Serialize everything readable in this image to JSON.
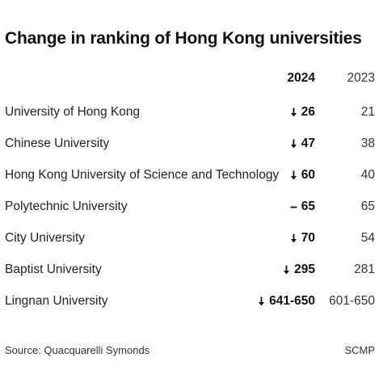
{
  "chart_data": {
    "type": "table",
    "title": "Change in ranking of Hong Kong universities",
    "columns": [
      "2024",
      "2023"
    ],
    "rows": [
      {
        "name": "University of Hong Kong",
        "rank_2024": "26",
        "rank_2023": "21",
        "change": "down"
      },
      {
        "name": "Chinese University",
        "rank_2024": "47",
        "rank_2023": "38",
        "change": "down"
      },
      {
        "name": "Hong Kong University of Science and Technology",
        "rank_2024": "60",
        "rank_2023": "40",
        "change": "down"
      },
      {
        "name": "Polytechnic University",
        "rank_2024": "65",
        "rank_2023": "65",
        "change": "same"
      },
      {
        "name": "City University",
        "rank_2024": "70",
        "rank_2023": "54",
        "change": "down"
      },
      {
        "name": "Baptist University",
        "rank_2024": "295",
        "rank_2023": "281",
        "change": "down"
      },
      {
        "name": "Lingnan University",
        "rank_2024": "641-650",
        "rank_2023": "601-650",
        "change": "down"
      }
    ]
  },
  "footer": {
    "source": "Source: Quacquarelli Symonds",
    "credit": "SCMP"
  },
  "colors": {
    "text": "#222222",
    "title": "#111111"
  }
}
